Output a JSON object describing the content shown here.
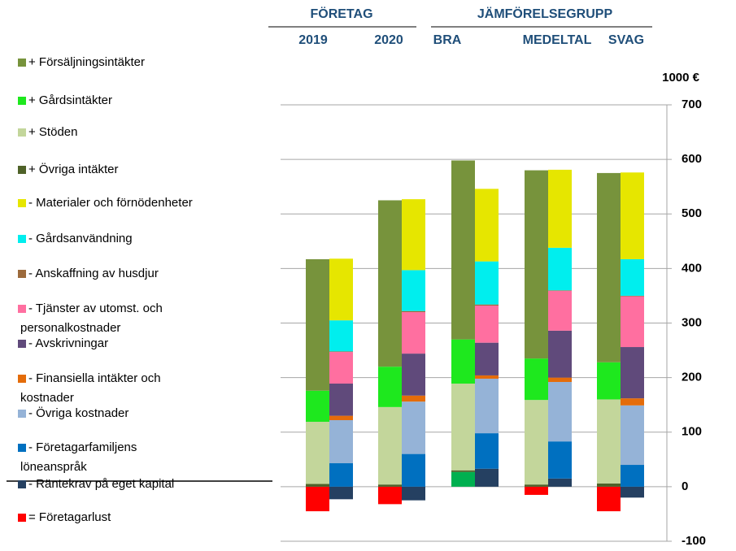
{
  "chart_data": {
    "type": "stacked_bar",
    "y_label": "1000 €",
    "groups": [
      "FÖRETAG",
      "JÄMFÖRELSEGRUPP"
    ],
    "categories": [
      "2019",
      "2020",
      "BRA",
      "MEDELTAL",
      "SVAG"
    ],
    "ylim": [
      -100,
      700
    ],
    "yticks": [
      -100,
      0,
      100,
      200,
      300,
      400,
      500,
      600,
      700
    ],
    "grid": true,
    "series": [
      {
        "name": "+ Försäljningsintäkter",
        "color": "#77933c",
        "stack": "left",
        "values": [
          241,
          305,
          328,
          345,
          347
        ]
      },
      {
        "name": "+ Gårdsintäkter",
        "color": "#1ee81e",
        "stack": "left",
        "values": [
          57,
          74,
          81,
          76,
          68
        ]
      },
      {
        "name": "+ Stöden",
        "color": "#c3d69b",
        "stack": "left",
        "values": [
          114,
          142,
          159,
          155,
          154
        ]
      },
      {
        "name": "+ Övriga intäkter",
        "color": "#4f6228",
        "stack": "left",
        "values": [
          5,
          4,
          3,
          4,
          6
        ]
      },
      {
        "name": "- Materialer och förnödenheter",
        "color": "#e6e600",
        "stack": "right",
        "values": [
          113,
          130,
          133,
          143,
          159
        ]
      },
      {
        "name": "- Gårdsanvändning",
        "color": "#00eeee",
        "stack": "right",
        "values": [
          57,
          75,
          79,
          78,
          67
        ]
      },
      {
        "name": "- Anskaffning av husdjur",
        "color": "#9c6a3c",
        "stack": "right",
        "values": [
          1,
          2,
          2,
          1,
          1
        ]
      },
      {
        "name": "- Tjänster av utomst. och personalkostnader",
        "color": "#ff6fa0",
        "stack": "right",
        "values": [
          58,
          76,
          68,
          73,
          93
        ]
      },
      {
        "name": "- Avskrivningar",
        "color": "#604a7b",
        "stack": "right",
        "values": [
          59,
          77,
          60,
          86,
          94
        ]
      },
      {
        "name": "- Finansiella intäkter och kostnader",
        "color": "#e46c0a",
        "stack": "right",
        "values": [
          8,
          11,
          6,
          8,
          13
        ]
      },
      {
        "name": "- Övriga kostnader",
        "color": "#95b3d7",
        "stack": "right",
        "values": [
          79,
          96,
          100,
          109,
          109
        ]
      },
      {
        "name": "- Företagarfamiljens löneanspråk",
        "color": "#0070c0",
        "stack": "right",
        "values": [
          43,
          60,
          65,
          68,
          40
        ]
      },
      {
        "name": "- Räntekrav på eget kapital",
        "color": "#254061",
        "stack": "right",
        "values": [
          -23,
          -25,
          33,
          15,
          -20
        ]
      },
      {
        "name": "= Företagarlust",
        "color": "#ff0000",
        "stack": "left",
        "point_colors": [
          "#ff0000",
          "#ff0000",
          "#00b050",
          "#ff0000",
          "#ff0000"
        ],
        "values": [
          -45,
          -32,
          27,
          -15,
          -45
        ]
      }
    ]
  }
}
